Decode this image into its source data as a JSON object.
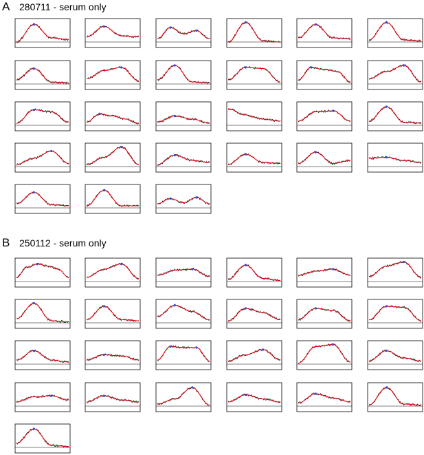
{
  "panels": [
    {
      "label": "A",
      "title": "280711 - serum only",
      "count": 27,
      "chart_data": {
        "type": "line",
        "series": [
          {
            "values": [
              0.0,
              0.85,
              0.2,
              0.12
            ]
          },
          {
            "values": [
              0.25,
              0.75,
              0.3,
              0.25
            ]
          },
          {
            "values": [
              0.15,
              0.7,
              0.4,
              0.55,
              0.15
            ]
          },
          {
            "values": [
              0.0,
              0.95,
              0.05,
              0.0
            ]
          },
          {
            "values": [
              0.2,
              0.85,
              0.2,
              0.15
            ]
          },
          {
            "values": [
              0.1,
              0.95,
              0.1,
              0.05
            ]
          },
          {
            "values": [
              0.2,
              0.75,
              0.1,
              0.05
            ]
          },
          {
            "values": [
              0.25,
              0.65,
              0.8,
              0.15
            ]
          },
          {
            "values": [
              0.2,
              0.9,
              0.1,
              0.05
            ]
          },
          {
            "values": [
              0.2,
              0.8,
              0.75,
              0.1
            ]
          },
          {
            "values": [
              0.2,
              0.8,
              0.7,
              0.6,
              0.1
            ]
          },
          {
            "values": [
              0.25,
              0.6,
              0.9,
              0.1
            ]
          },
          {
            "values": [
              0.1,
              0.75,
              0.65,
              0.15
            ]
          },
          {
            "values": [
              0.15,
              0.55,
              0.45,
              0.3,
              0.1
            ]
          },
          {
            "values": [
              0.15,
              0.45,
              0.3,
              0.1
            ]
          },
          {
            "values": [
              0.8,
              0.5,
              0.3,
              0.2
            ]
          },
          {
            "values": [
              0.2,
              0.65,
              0.7,
              0.2
            ]
          },
          {
            "values": [
              0.2,
              0.9,
              0.15,
              0.1
            ]
          },
          {
            "values": [
              0.1,
              0.4,
              0.75,
              0.15
            ]
          },
          {
            "values": [
              0.1,
              0.45,
              0.95,
              0.1
            ]
          },
          {
            "values": [
              0.1,
              0.55,
              0.3,
              0.2
            ]
          },
          {
            "values": [
              0.1,
              0.6,
              0.2,
              0.15
            ]
          },
          {
            "values": [
              0.15,
              0.7,
              0.15,
              0.3
            ]
          },
          {
            "values": [
              0.4,
              0.45,
              0.3,
              0.2
            ]
          },
          {
            "values": [
              0.2,
              0.75,
              0.15,
              0.1
            ]
          },
          {
            "values": [
              0.1,
              0.85,
              0.1,
              0.1
            ]
          },
          {
            "values": [
              0.2,
              0.45,
              0.25,
              0.5,
              0.2
            ]
          }
        ]
      }
    },
    {
      "label": "B",
      "title": "250112 - serum only",
      "count": 25,
      "chart_data": {
        "type": "line",
        "series": [
          {
            "values": [
              0.2,
              0.7,
              0.85,
              0.75,
              0.6,
              0.2
            ]
          },
          {
            "values": [
              0.2,
              0.6,
              0.85,
              0.15
            ]
          },
          {
            "values": [
              0.3,
              0.55,
              0.6,
              0.25
            ]
          },
          {
            "values": [
              0.1,
              0.8,
              0.15,
              0.05
            ]
          },
          {
            "values": [
              0.3,
              0.5,
              0.6,
              0.3
            ]
          },
          {
            "values": [
              0.25,
              0.75,
              0.95,
              0.2
            ]
          },
          {
            "values": [
              0.2,
              0.95,
              0.1,
              0.05
            ]
          },
          {
            "values": [
              0.15,
              0.8,
              0.15,
              0.1
            ]
          },
          {
            "values": [
              0.3,
              0.85,
              0.55,
              0.15
            ]
          },
          {
            "values": [
              0.1,
              0.7,
              0.5,
              0.15
            ]
          },
          {
            "values": [
              0.15,
              0.7,
              0.6,
              0.1
            ]
          },
          {
            "values": [
              0.15,
              0.8,
              0.75,
              0.1
            ]
          },
          {
            "values": [
              0.2,
              0.65,
              0.2,
              0.1
            ]
          },
          {
            "values": [
              0.2,
              0.45,
              0.4,
              0.2
            ]
          },
          {
            "values": [
              0.2,
              0.85,
              0.8,
              0.8,
              0.15
            ]
          },
          {
            "values": [
              0.15,
              0.45,
              0.7,
              0.2
            ]
          },
          {
            "values": [
              0.05,
              0.85,
              0.95,
              0.1
            ]
          },
          {
            "values": [
              0.15,
              0.65,
              0.3,
              0.15
            ]
          },
          {
            "values": [
              0.2,
              0.45,
              0.5,
              0.3
            ]
          },
          {
            "values": [
              0.2,
              0.5,
              0.3,
              0.2
            ]
          },
          {
            "values": [
              0.1,
              0.35,
              0.9,
              0.05
            ]
          },
          {
            "values": [
              0.2,
              0.55,
              0.35,
              0.2
            ]
          },
          {
            "values": [
              0.15,
              0.6,
              0.4,
              0.2
            ]
          },
          {
            "values": [
              0.05,
              0.9,
              0.1,
              0.05
            ]
          },
          {
            "values": [
              0.2,
              0.9,
              0.1,
              0.05
            ]
          }
        ]
      }
    }
  ],
  "colors": {
    "fit": "#e8000b",
    "trace": "#1a1a1a",
    "peak": "#3548d6",
    "baseline": "#000000",
    "frame": "#000000"
  }
}
